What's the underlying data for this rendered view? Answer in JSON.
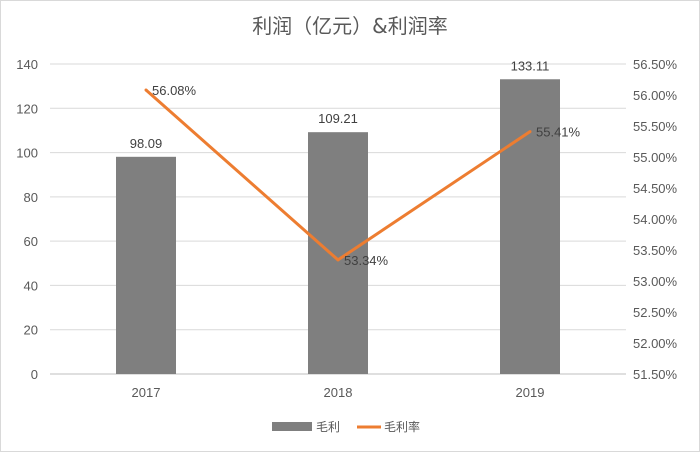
{
  "chart_data": {
    "type": "bar+line",
    "title": "利润（亿元）&利润率",
    "categories": [
      "2017",
      "2018",
      "2019"
    ],
    "series": [
      {
        "name": "毛利",
        "type": "bar",
        "axis": "left",
        "values": [
          98.09,
          109.21,
          133.11
        ],
        "labels": [
          "98.09",
          "109.21",
          "133.11"
        ],
        "color": "#7f7f7f"
      },
      {
        "name": "毛利率",
        "type": "line",
        "axis": "right",
        "values": [
          56.08,
          53.34,
          55.41
        ],
        "labels": [
          "56.08%",
          "53.34%",
          "55.41%"
        ],
        "color": "#ed7d31"
      }
    ],
    "y_left": {
      "min": 0,
      "max": 140,
      "step": 20,
      "ticks": [
        "0",
        "20",
        "40",
        "60",
        "80",
        "100",
        "120",
        "140"
      ]
    },
    "y_right": {
      "min": 51.5,
      "max": 56.5,
      "step": 0.5,
      "ticks": [
        "51.50%",
        "52.00%",
        "52.50%",
        "53.00%",
        "53.50%",
        "54.00%",
        "54.50%",
        "55.00%",
        "55.50%",
        "56.00%",
        "56.50%"
      ]
    },
    "grid": true,
    "legend_position": "bottom"
  }
}
